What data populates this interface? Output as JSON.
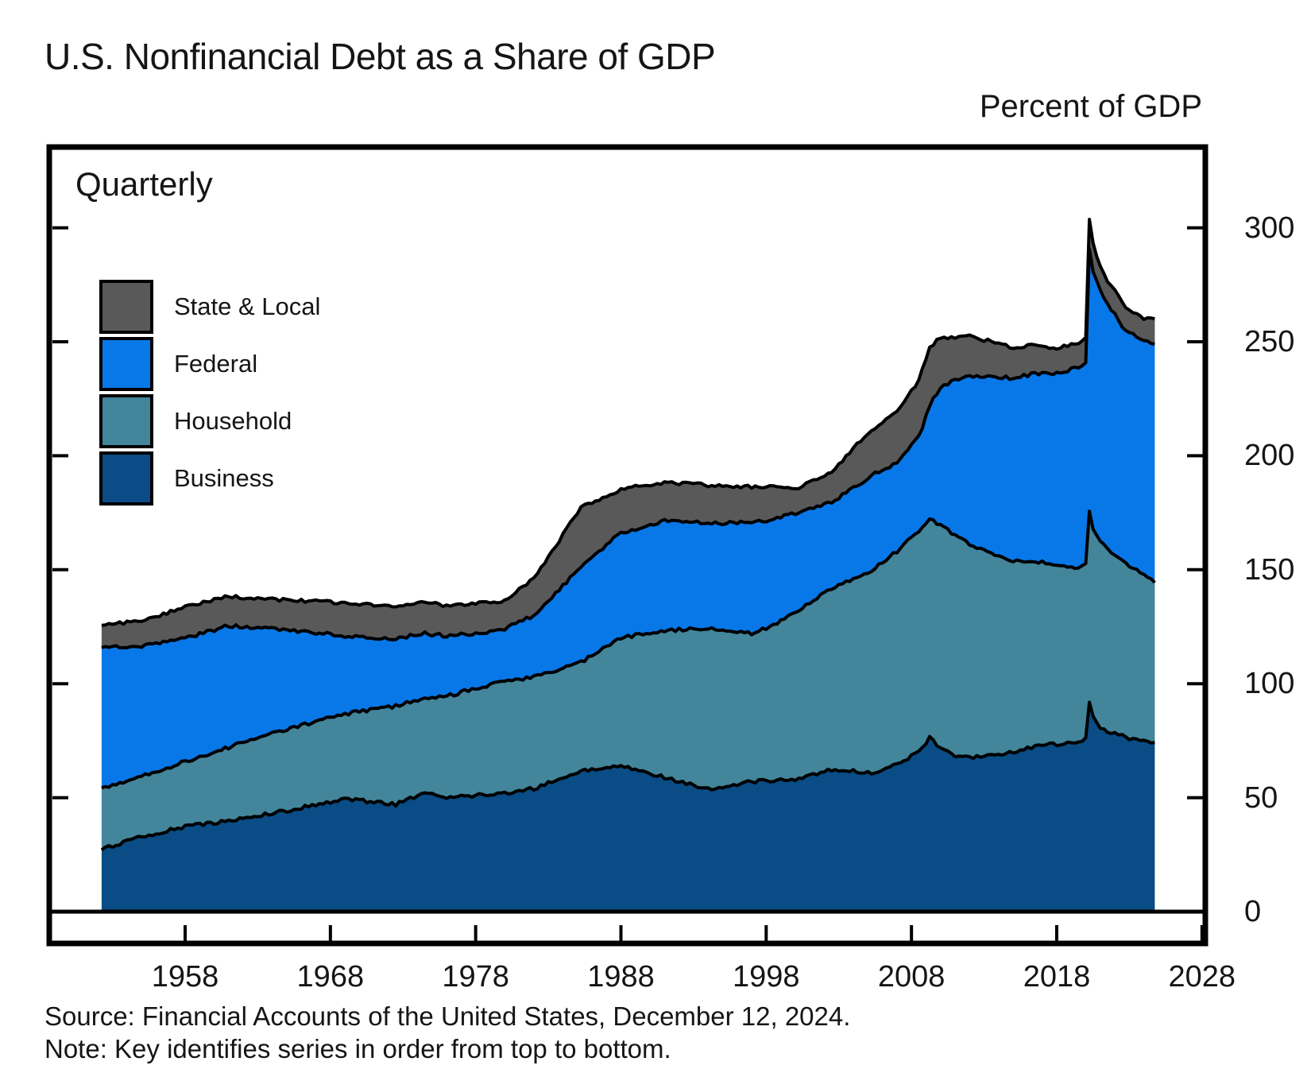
{
  "title": "U.S. Nonfinancial Debt as a Share of GDP",
  "axis_unit_label": "Percent of GDP",
  "panel_label": "Quarterly",
  "legend": {
    "items": [
      {
        "label": "State & Local",
        "color": "#595959"
      },
      {
        "label": "Federal",
        "color": "#0878E8"
      },
      {
        "label": "Household",
        "color": "#43859A"
      },
      {
        "label": "Business",
        "color": "#0A4C85"
      }
    ]
  },
  "source_line": "Source: Financial Accounts of the United States, December 12, 2024.",
  "note_line": "Note: Key identifies series in order from top to bottom.",
  "chart_data": {
    "type": "area",
    "stacked": true,
    "frequency": "Quarterly",
    "title": "U.S. Nonfinancial Debt as a Share of GDP",
    "ylabel": "Percent of GDP",
    "xlim": [
      1951.5,
      2028
    ],
    "ylim": [
      0,
      335
    ],
    "x_ticks": [
      1958,
      1968,
      1978,
      1988,
      1998,
      2008,
      2018,
      2028
    ],
    "y_ticks": [
      0,
      50,
      100,
      150,
      200,
      250,
      300
    ],
    "x_start": 1952.25,
    "x_end": 2024.75,
    "stack_order_bottom_to_top": [
      "Business",
      "Household",
      "Federal",
      "State & Local"
    ],
    "anchor_x": [
      1952.25,
      1955,
      1958,
      1961,
      1965,
      1969,
      1972.5,
      1974.5,
      1976,
      1978,
      1980,
      1982,
      1985.25,
      1988,
      1991,
      1994,
      1997,
      1998.25,
      2000,
      2002.5,
      2005.25,
      2007,
      2008.5,
      2009.25,
      2010,
      2011,
      2012,
      2013.5,
      2015,
      2016.5,
      2018,
      2019.5,
      2020,
      2020.25,
      2020.5,
      2021,
      2021.5,
      2022,
      2022.5,
      2023,
      2023.5,
      2024,
      2024.75
    ],
    "series": [
      {
        "name": "Business",
        "color": "#0A4C85",
        "values": [
          27.5,
          32.8,
          37.3,
          39.7,
          44.3,
          49.5,
          47,
          52,
          50,
          51,
          52,
          54,
          61.7,
          64.1,
          58.9,
          53.7,
          57,
          57.5,
          58.2,
          62.4,
          61,
          64.5,
          70,
          76.3,
          72,
          68.6,
          67.5,
          68.6,
          70,
          72.5,
          73.5,
          74.5,
          76,
          92,
          86,
          81,
          79,
          78,
          77,
          76,
          75.5,
          75,
          74
        ]
      },
      {
        "name": "Household",
        "color": "#43859A",
        "values": [
          26.2,
          26.4,
          28.6,
          32.4,
          35.8,
          37.3,
          43.2,
          42,
          44.5,
          47,
          49,
          49,
          47.7,
          56.1,
          64.4,
          70.7,
          65,
          67.5,
          72.8,
          79.4,
          88.8,
          93.5,
          97,
          95.7,
          98,
          96.4,
          93.5,
          88.4,
          84,
          81.5,
          78,
          76.5,
          76,
          83,
          82,
          81,
          80,
          79,
          78,
          76,
          74.5,
          73,
          71
        ]
      },
      {
        "name": "Federal",
        "color": "#0878E8",
        "values": [
          62.7,
          57.2,
          54,
          53.3,
          43.6,
          34.1,
          29.7,
          28,
          26.5,
          24,
          23,
          27,
          41.8,
          46,
          48.1,
          46,
          48.7,
          47,
          43.9,
          37.6,
          41.5,
          39,
          41,
          50,
          60,
          68,
          74,
          78,
          80,
          82,
          84.5,
          88,
          89,
          115,
          113,
          110,
          107,
          105,
          102,
          102,
          102,
          102.5,
          104
        ]
      },
      {
        "name": "State & Local",
        "color": "#595959",
        "values": [
          9.7,
          10.8,
          13.9,
          12.9,
          12.9,
          14.6,
          13.9,
          14,
          13,
          13.5,
          12.5,
          16,
          26,
          19.2,
          16.8,
          16.7,
          15.7,
          14.5,
          10.5,
          13.6,
          20.2,
          22,
          25,
          25,
          22,
          19,
          17.5,
          15,
          13.5,
          12.5,
          11,
          10.5,
          10.5,
          14,
          12,
          11,
          10.5,
          10.5,
          10,
          10,
          10,
          10,
          10.5
        ]
      }
    ]
  }
}
